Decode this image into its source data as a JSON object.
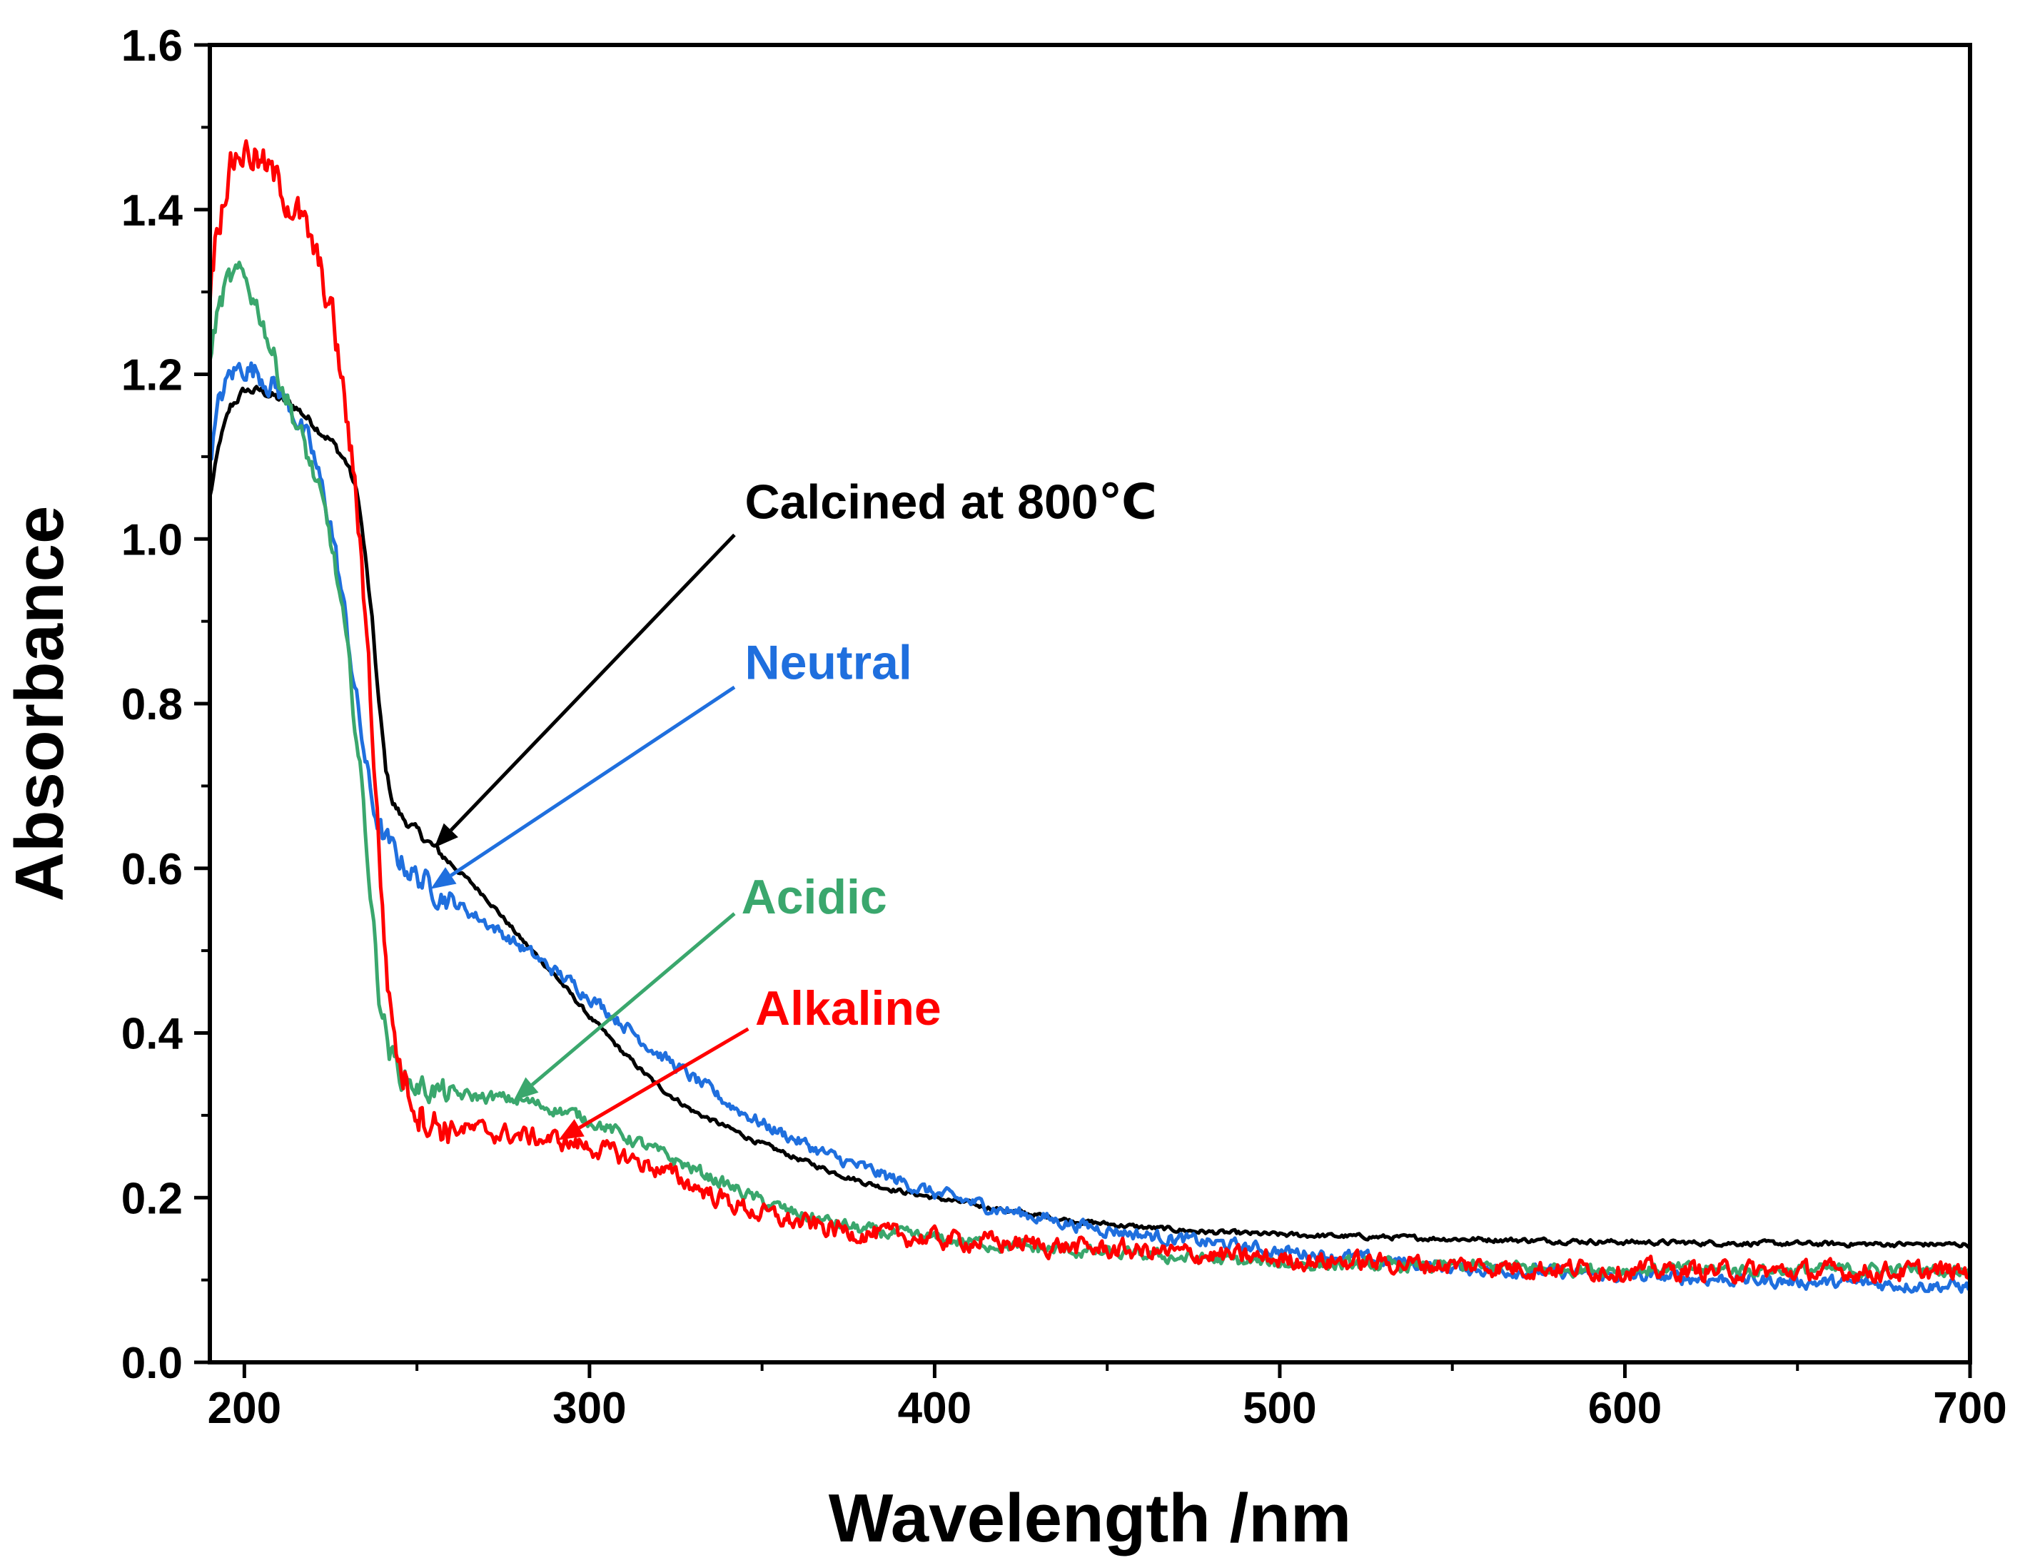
{
  "chart_data": {
    "type": "line",
    "title": "",
    "xlabel": "Wavelength /nm",
    "ylabel": "Absorbance",
    "xlim": [
      190,
      700
    ],
    "ylim": [
      0.0,
      1.6
    ],
    "x_ticks": [
      200,
      300,
      400,
      500,
      600,
      700
    ],
    "x_tick_labels": [
      "200",
      "300",
      "400",
      "500",
      "600",
      "700"
    ],
    "y_ticks": [
      0.0,
      0.2,
      0.4,
      0.6,
      0.8,
      1.0,
      1.2,
      1.4,
      1.6
    ],
    "y_tick_labels": [
      "0.0",
      "0.2",
      "0.4",
      "0.6",
      "0.8",
      "1.0",
      "1.2",
      "1.4",
      "1.6"
    ],
    "grid": false,
    "series": [
      {
        "name": "Calcined at 800℃",
        "color": "#000000",
        "noise": 0.003,
        "points": [
          [
            190,
            1.05
          ],
          [
            193,
            1.12
          ],
          [
            196,
            1.16
          ],
          [
            200,
            1.18
          ],
          [
            205,
            1.18
          ],
          [
            210,
            1.17
          ],
          [
            215,
            1.16
          ],
          [
            220,
            1.14
          ],
          [
            225,
            1.12
          ],
          [
            230,
            1.09
          ],
          [
            233,
            1.05
          ],
          [
            235,
            0.98
          ],
          [
            237,
            0.9
          ],
          [
            239,
            0.8
          ],
          [
            241,
            0.72
          ],
          [
            243,
            0.68
          ],
          [
            246,
            0.66
          ],
          [
            250,
            0.645
          ],
          [
            255,
            0.625
          ],
          [
            260,
            0.605
          ],
          [
            270,
            0.565
          ],
          [
            280,
            0.515
          ],
          [
            290,
            0.47
          ],
          [
            300,
            0.42
          ],
          [
            310,
            0.375
          ],
          [
            320,
            0.335
          ],
          [
            330,
            0.305
          ],
          [
            340,
            0.285
          ],
          [
            350,
            0.265
          ],
          [
            360,
            0.248
          ],
          [
            370,
            0.232
          ],
          [
            380,
            0.218
          ],
          [
            390,
            0.208
          ],
          [
            400,
            0.2
          ],
          [
            420,
            0.185
          ],
          [
            440,
            0.172
          ],
          [
            460,
            0.164
          ],
          [
            480,
            0.158
          ],
          [
            500,
            0.155
          ],
          [
            550,
            0.15
          ],
          [
            600,
            0.146
          ],
          [
            650,
            0.144
          ],
          [
            700,
            0.143
          ]
        ]
      },
      {
        "name": "Neutral",
        "color": "#1f6fde",
        "noise": 0.008,
        "points": [
          [
            190,
            1.1
          ],
          [
            193,
            1.17
          ],
          [
            196,
            1.2
          ],
          [
            200,
            1.21
          ],
          [
            205,
            1.2
          ],
          [
            210,
            1.18
          ],
          [
            215,
            1.15
          ],
          [
            220,
            1.1
          ],
          [
            225,
            1.02
          ],
          [
            228,
            0.94
          ],
          [
            231,
            0.85
          ],
          [
            234,
            0.76
          ],
          [
            237,
            0.68
          ],
          [
            240,
            0.64
          ],
          [
            245,
            0.61
          ],
          [
            250,
            0.59
          ],
          [
            255,
            0.575
          ],
          [
            260,
            0.56
          ],
          [
            270,
            0.535
          ],
          [
            280,
            0.505
          ],
          [
            290,
            0.475
          ],
          [
            300,
            0.445
          ],
          [
            310,
            0.41
          ],
          [
            320,
            0.375
          ],
          [
            330,
            0.345
          ],
          [
            340,
            0.315
          ],
          [
            350,
            0.29
          ],
          [
            360,
            0.27
          ],
          [
            370,
            0.25
          ],
          [
            380,
            0.235
          ],
          [
            390,
            0.22
          ],
          [
            400,
            0.205
          ],
          [
            420,
            0.185
          ],
          [
            440,
            0.168
          ],
          [
            460,
            0.155
          ],
          [
            480,
            0.145
          ],
          [
            500,
            0.135
          ],
          [
            520,
            0.128
          ],
          [
            550,
            0.115
          ],
          [
            600,
            0.105
          ],
          [
            650,
            0.098
          ],
          [
            700,
            0.092
          ]
        ]
      },
      {
        "name": "Acidic",
        "color": "#3aa76d",
        "noise": 0.008,
        "points": [
          [
            190,
            1.22
          ],
          [
            192,
            1.27
          ],
          [
            195,
            1.31
          ],
          [
            198,
            1.32
          ],
          [
            201,
            1.31
          ],
          [
            205,
            1.27
          ],
          [
            210,
            1.2
          ],
          [
            215,
            1.14
          ],
          [
            220,
            1.08
          ],
          [
            225,
            1.0
          ],
          [
            228,
            0.92
          ],
          [
            231,
            0.82
          ],
          [
            234,
            0.7
          ],
          [
            237,
            0.55
          ],
          [
            239,
            0.45
          ],
          [
            242,
            0.38
          ],
          [
            246,
            0.345
          ],
          [
            250,
            0.335
          ],
          [
            260,
            0.325
          ],
          [
            270,
            0.322
          ],
          [
            280,
            0.318
          ],
          [
            290,
            0.308
          ],
          [
            300,
            0.295
          ],
          [
            310,
            0.275
          ],
          [
            320,
            0.255
          ],
          [
            330,
            0.235
          ],
          [
            340,
            0.215
          ],
          [
            350,
            0.195
          ],
          [
            360,
            0.18
          ],
          [
            370,
            0.17
          ],
          [
            380,
            0.16
          ],
          [
            390,
            0.155
          ],
          [
            400,
            0.15
          ],
          [
            420,
            0.142
          ],
          [
            440,
            0.135
          ],
          [
            460,
            0.13
          ],
          [
            480,
            0.125
          ],
          [
            500,
            0.12
          ],
          [
            550,
            0.116
          ],
          [
            600,
            0.113
          ],
          [
            650,
            0.112
          ],
          [
            700,
            0.112
          ]
        ]
      },
      {
        "name": "Alkaline",
        "color": "#ff0000",
        "noise": 0.012,
        "points": [
          [
            190,
            1.3
          ],
          [
            192,
            1.38
          ],
          [
            195,
            1.44
          ],
          [
            198,
            1.47
          ],
          [
            202,
            1.47
          ],
          [
            206,
            1.45
          ],
          [
            210,
            1.43
          ],
          [
            215,
            1.4
          ],
          [
            220,
            1.35
          ],
          [
            225,
            1.28
          ],
          [
            228,
            1.2
          ],
          [
            231,
            1.1
          ],
          [
            234,
            0.98
          ],
          [
            236,
            0.85
          ],
          [
            238,
            0.7
          ],
          [
            240,
            0.55
          ],
          [
            242,
            0.44
          ],
          [
            245,
            0.36
          ],
          [
            250,
            0.31
          ],
          [
            255,
            0.29
          ],
          [
            260,
            0.285
          ],
          [
            270,
            0.28
          ],
          [
            280,
            0.275
          ],
          [
            290,
            0.27
          ],
          [
            300,
            0.262
          ],
          [
            310,
            0.25
          ],
          [
            320,
            0.235
          ],
          [
            330,
            0.215
          ],
          [
            340,
            0.195
          ],
          [
            350,
            0.18
          ],
          [
            360,
            0.17
          ],
          [
            370,
            0.162
          ],
          [
            380,
            0.157
          ],
          [
            390,
            0.153
          ],
          [
            400,
            0.15
          ],
          [
            420,
            0.145
          ],
          [
            440,
            0.14
          ],
          [
            460,
            0.135
          ],
          [
            480,
            0.13
          ],
          [
            500,
            0.125
          ],
          [
            550,
            0.118
          ],
          [
            600,
            0.112
          ],
          [
            650,
            0.11
          ],
          [
            700,
            0.11
          ]
        ]
      }
    ],
    "annotations": [
      {
        "text": "Calcined at 800℃",
        "color": "#000000",
        "label_at": [
          345,
          1.025
        ],
        "arrow_tail": [
          342,
          1.005
        ],
        "arrow_head": [
          255,
          0.625
        ]
      },
      {
        "text": "Neutral",
        "color": "#1f6fde",
        "label_at": [
          345,
          0.83
        ],
        "arrow_tail": [
          342,
          0.82
        ],
        "arrow_head": [
          254,
          0.575
        ]
      },
      {
        "text": "Acidic",
        "color": "#3aa76d",
        "label_at": [
          344,
          0.545
        ],
        "arrow_tail": [
          342,
          0.545
        ],
        "arrow_head": [
          278,
          0.318
        ]
      },
      {
        "text": "Alkaline",
        "color": "#ff0000",
        "label_at": [
          348,
          0.41
        ],
        "arrow_tail": [
          346,
          0.405
        ],
        "arrow_head": [
          291,
          0.27
        ]
      }
    ]
  }
}
